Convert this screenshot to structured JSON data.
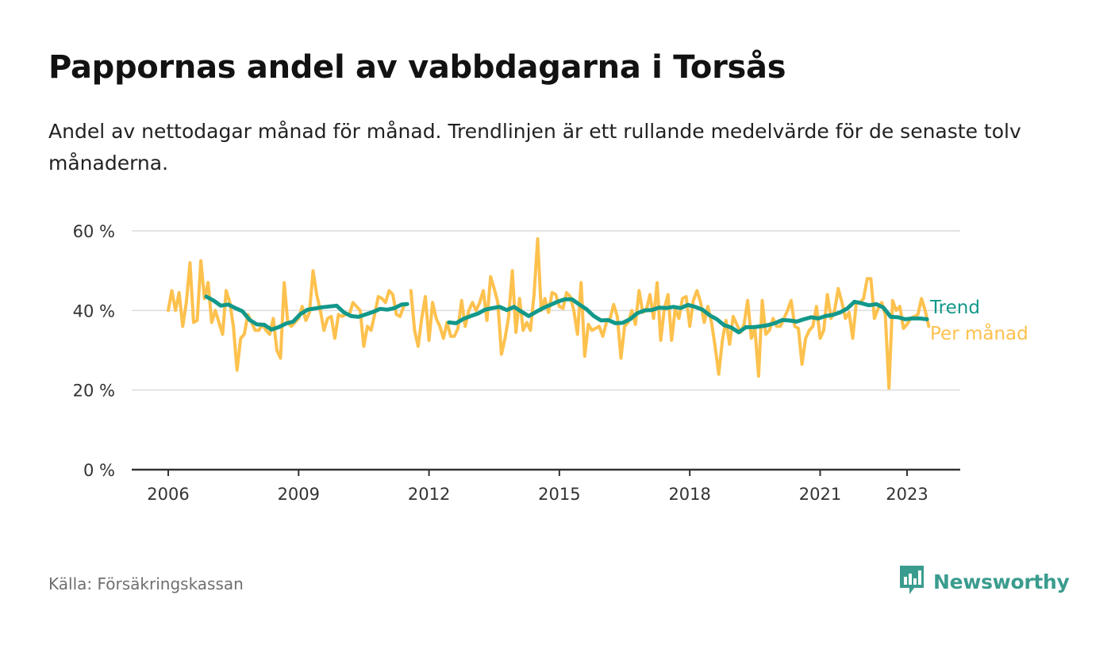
{
  "title": "Pappornas andel av vabbdagarna i Torsås",
  "subtitle": "Andel av nettodagar månad för månad. Trendlinjen är ett rullande medelvärde för de senaste tolv månaderna.",
  "source": "Källa: Försäkringskassan",
  "brand": {
    "name": "Newsworthy",
    "icon": "newsworthy-logo-icon"
  },
  "colors": {
    "monthly": "#fdc14e",
    "trend": "#12988a",
    "grid": "#dcdcdc",
    "axis": "#333333"
  },
  "chart_data": {
    "type": "line",
    "ylim": [
      0,
      60
    ],
    "xlim": [
      2006.0,
      2025.0
    ],
    "y_ticks": [
      0,
      20,
      40,
      60
    ],
    "y_tick_labels": [
      "0 %",
      "20 %",
      "40 %",
      "60 %"
    ],
    "x_ticks": [
      2006,
      2009,
      2012,
      2015,
      2018,
      2021,
      2023
    ],
    "x_tick_labels": [
      "2006",
      "2009",
      "2012",
      "2015",
      "2018",
      "2021",
      "2023"
    ],
    "grid": true,
    "legend": "inline-right",
    "series": [
      {
        "name": "Trend",
        "color": "#12988a",
        "x": [
          2006.875,
          2007.042,
          2007.208,
          2007.375,
          2007.542,
          2007.708,
          2007.875,
          2008.042,
          2008.208,
          2008.375,
          2008.542,
          2008.708,
          2008.875,
          2009.042,
          2009.208,
          2009.375,
          2009.542,
          2009.708,
          2009.875,
          2010.042,
          2010.208,
          2010.375,
          2010.542,
          2010.708,
          2010.875,
          2011.042,
          2011.208,
          2011.375,
          2011.5,
          null,
          2012.458,
          2012.625,
          2012.792,
          2012.958,
          2013.125,
          2013.292,
          2013.458,
          2013.625,
          2013.792,
          2013.958,
          2014.125,
          2014.292,
          2014.458,
          2014.625,
          2014.792,
          2014.958,
          2015.125,
          2015.292,
          2015.458,
          2015.625,
          2015.792,
          2015.958,
          2016.125,
          2016.292,
          2016.458,
          2016.625,
          2016.792,
          2016.958,
          2017.125,
          2017.292,
          2017.458,
          2017.625,
          2017.792,
          2017.958,
          2018.125,
          2018.292,
          2018.458,
          2018.625,
          2018.792,
          2018.958,
          2019.125,
          2019.292,
          2019.458,
          2019.625,
          2019.792,
          2019.958,
          2020.125,
          2020.292,
          2020.458,
          2020.625,
          2020.792,
          2020.958,
          2021.125,
          2021.292,
          2021.458,
          2021.625,
          2021.792,
          2021.958,
          2022.125,
          2022.292,
          2022.458,
          2022.625,
          2022.792,
          2022.958,
          2023.125,
          2023.292,
          2023.458
        ],
        "values": [
          43.5,
          42.5,
          41.2,
          41.5,
          40.6,
          39.8,
          37.6,
          36.5,
          36.4,
          35.2,
          35.8,
          36.7,
          37.2,
          39.1,
          40.2,
          40.5,
          40.8,
          41.0,
          41.2,
          39.5,
          38.6,
          38.4,
          39.0,
          39.6,
          40.4,
          40.2,
          40.6,
          41.5,
          41.6,
          null,
          37.0,
          36.8,
          37.9,
          38.6,
          39.2,
          40.2,
          40.6,
          40.9,
          40.1,
          40.9,
          39.7,
          38.6,
          39.6,
          40.6,
          41.4,
          42.2,
          42.8,
          42.8,
          41.5,
          40.3,
          38.6,
          37.5,
          37.6,
          36.8,
          36.9,
          37.8,
          39.3,
          40.0,
          40.1,
          40.7,
          40.6,
          40.9,
          40.6,
          41.4,
          40.9,
          40.2,
          38.8,
          37.8,
          36.3,
          35.7,
          34.5,
          35.8,
          35.8,
          36.0,
          36.3,
          36.8,
          37.6,
          37.5,
          37.2,
          37.8,
          38.3,
          38.0,
          38.6,
          38.9,
          39.5,
          40.5,
          42.2,
          41.8,
          41.3,
          41.6,
          40.7,
          38.4,
          38.3,
          37.8,
          38.0,
          38.0,
          37.8
        ]
      },
      {
        "name": "Per månad",
        "color": "#fdc14e",
        "x": [
          2006.0,
          2006.083,
          2006.167,
          2006.25,
          2006.333,
          2006.417,
          2006.5,
          2006.583,
          2006.667,
          2006.75,
          2006.833,
          2006.917,
          2007.0,
          2007.083,
          2007.167,
          2007.25,
          2007.333,
          2007.417,
          2007.5,
          2007.583,
          2007.667,
          2007.75,
          2007.833,
          2007.917,
          2008.0,
          2008.083,
          2008.167,
          2008.25,
          2008.333,
          2008.417,
          2008.5,
          2008.583,
          2008.667,
          2008.75,
          2008.833,
          2008.917,
          2009.0,
          2009.083,
          2009.167,
          2009.25,
          2009.333,
          2009.417,
          2009.5,
          2009.583,
          2009.667,
          2009.75,
          2009.833,
          2009.917,
          2010.0,
          2010.083,
          2010.167,
          2010.25,
          2010.333,
          2010.417,
          2010.5,
          2010.583,
          2010.667,
          2010.75,
          2010.833,
          2010.917,
          2011.0,
          2011.083,
          2011.167,
          2011.25,
          2011.333,
          2011.417,
          null,
          2011.583,
          2011.667,
          2011.75,
          2011.833,
          2011.917,
          2012.0,
          2012.083,
          2012.167,
          2012.25,
          2012.333,
          2012.417,
          2012.5,
          2012.583,
          2012.667,
          2012.75,
          2012.833,
          2012.917,
          2013.0,
          2013.083,
          2013.167,
          2013.25,
          2013.333,
          2013.417,
          2013.5,
          2013.583,
          2013.667,
          2013.75,
          2013.833,
          2013.917,
          2014.0,
          2014.083,
          2014.167,
          2014.25,
          2014.333,
          2014.417,
          2014.5,
          2014.583,
          2014.667,
          2014.75,
          2014.833,
          2014.917,
          2015.0,
          2015.083,
          2015.167,
          2015.25,
          2015.333,
          2015.417,
          2015.5,
          2015.583,
          2015.667,
          2015.75,
          2015.833,
          2015.917,
          2016.0,
          2016.083,
          2016.167,
          2016.25,
          2016.333,
          2016.417,
          2016.5,
          2016.583,
          2016.667,
          2016.75,
          2016.833,
          2016.917,
          2017.0,
          2017.083,
          2017.167,
          2017.25,
          2017.333,
          2017.417,
          2017.5,
          2017.583,
          2017.667,
          2017.75,
          2017.833,
          2017.917,
          2018.0,
          2018.083,
          2018.167,
          2018.25,
          2018.333,
          2018.417,
          2018.5,
          2018.583,
          2018.667,
          2018.75,
          2018.833,
          2018.917,
          2019.0,
          2019.083,
          2019.167,
          2019.25,
          2019.333,
          2019.417,
          2019.5,
          2019.583,
          2019.667,
          2019.75,
          2019.833,
          2019.917,
          2020.0,
          2020.083,
          2020.167,
          2020.25,
          2020.333,
          2020.417,
          2020.5,
          2020.583,
          2020.667,
          2020.75,
          2020.833,
          2020.917,
          2021.0,
          2021.083,
          2021.167,
          2021.25,
          2021.333,
          2021.417,
          2021.5,
          2021.583,
          2021.667,
          2021.75,
          2021.833,
          2021.917,
          2022.0,
          2022.083,
          2022.167,
          2022.25,
          2022.333,
          2022.417,
          2022.5,
          2022.583,
          2022.667,
          2022.75,
          2022.833,
          2022.917,
          2023.0,
          2023.083,
          2023.167,
          2023.25,
          2023.333,
          2023.417,
          2023.5
        ],
        "values": [
          40,
          45,
          40,
          44.5,
          36,
          42,
          52,
          37,
          37.5,
          52.5,
          43,
          47,
          37,
          40,
          37,
          34,
          45,
          42,
          36,
          25,
          33,
          34,
          39,
          37,
          35,
          35,
          36.5,
          35,
          34,
          38,
          30,
          28,
          47,
          37,
          36,
          37,
          38,
          41,
          37.5,
          39.5,
          50,
          44,
          40,
          35,
          38,
          38.5,
          33,
          39,
          38.5,
          39,
          39,
          42,
          41,
          40,
          31,
          36,
          35,
          39,
          43.5,
          43,
          42,
          45,
          44,
          39,
          38.5,
          41,
          null,
          45,
          35,
          31,
          38,
          43.5,
          32.5,
          42,
          38,
          36,
          33,
          37,
          33.5,
          33.5,
          35.5,
          42.5,
          36,
          40,
          42,
          40,
          42,
          45,
          37.5,
          48.5,
          45.5,
          42,
          29,
          33,
          38.5,
          50,
          34.5,
          43,
          35,
          37,
          35,
          44,
          58,
          40,
          43,
          39.5,
          44.5,
          44,
          41,
          40.5,
          44.5,
          43.5,
          40,
          34,
          47,
          28.5,
          36.5,
          35,
          35.5,
          36,
          33.5,
          37,
          38,
          41.5,
          38.5,
          28,
          36,
          37,
          40,
          36.5,
          45,
          39.5,
          40,
          44,
          38,
          47,
          32.5,
          40.5,
          44,
          32.5,
          40.5,
          38,
          43,
          43.5,
          36,
          42.5,
          45,
          42,
          37,
          41,
          37,
          31,
          24,
          32.5,
          37.5,
          31.5,
          38.5,
          36.5,
          34.5,
          36.5,
          42.5,
          33,
          35.5,
          23.5,
          42.5,
          34,
          35,
          38,
          36,
          36,
          38,
          40,
          42.5,
          36,
          35.5,
          26.5,
          33,
          35,
          36,
          41,
          33,
          35,
          44,
          38,
          40,
          45.5,
          42,
          38,
          39.5,
          33,
          42,
          42,
          43,
          48,
          48,
          38,
          40.5,
          42,
          39,
          20.5,
          42.5,
          40,
          41,
          35.5,
          36.5,
          38,
          38.5,
          39,
          43,
          40,
          36
        ]
      }
    ]
  }
}
